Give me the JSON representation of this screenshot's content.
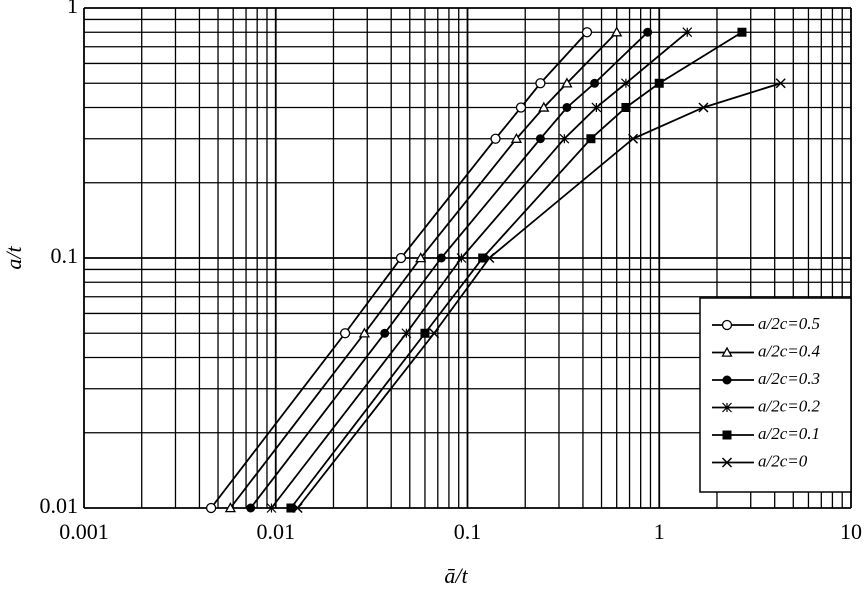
{
  "chart_data": {
    "type": "line",
    "x_label": "ā/t",
    "y_label": "a/t",
    "log_x": true,
    "log_y": true,
    "grid": true,
    "legend": "right",
    "xlim": [
      0.001,
      10
    ],
    "xticks": [
      0.001,
      0.01,
      0.1,
      1,
      10
    ],
    "ylim": [
      0.01,
      1
    ],
    "yticks": [
      0.01,
      0.1,
      1
    ],
    "series": [
      {
        "name": "a/2c=0.5",
        "color": "#000000",
        "marker": "circle-open",
        "x": [
          0.0046,
          0.023,
          0.045,
          0.14,
          0.19,
          0.24,
          0.42
        ],
        "values": [
          0.01,
          0.05,
          0.1,
          0.3,
          0.4,
          0.5,
          0.8
        ]
      },
      {
        "name": "a/2c=0.4",
        "color": "#000000",
        "marker": "triangle-open",
        "x": [
          0.0058,
          0.029,
          0.057,
          0.18,
          0.25,
          0.33,
          0.6
        ],
        "values": [
          0.01,
          0.05,
          0.1,
          0.3,
          0.4,
          0.5,
          0.8
        ]
      },
      {
        "name": "a/2c=0.3",
        "color": "#000000",
        "marker": "circle",
        "x": [
          0.0074,
          0.037,
          0.073,
          0.24,
          0.33,
          0.46,
          0.87
        ],
        "values": [
          0.01,
          0.05,
          0.1,
          0.3,
          0.4,
          0.5,
          0.8
        ]
      },
      {
        "name": "a/2c=0.2",
        "color": "#000000",
        "marker": "asterisk",
        "x": [
          0.0095,
          0.048,
          0.093,
          0.32,
          0.47,
          0.67,
          1.4
        ],
        "values": [
          0.01,
          0.05,
          0.1,
          0.3,
          0.4,
          0.5,
          0.8
        ]
      },
      {
        "name": "a/2c=0.1",
        "color": "#000000",
        "marker": "square",
        "x": [
          0.012,
          0.06,
          0.12,
          0.44,
          0.67,
          1.0,
          2.7
        ],
        "values": [
          0.01,
          0.05,
          0.1,
          0.3,
          0.4,
          0.5,
          0.8
        ]
      },
      {
        "name": "a/2c=0",
        "color": "#000000",
        "marker": "x",
        "x": [
          0.013,
          0.067,
          0.13,
          0.73,
          1.7,
          4.3
        ],
        "values": [
          0.01,
          0.05,
          0.1,
          0.3,
          0.4,
          0.5
        ]
      }
    ]
  }
}
